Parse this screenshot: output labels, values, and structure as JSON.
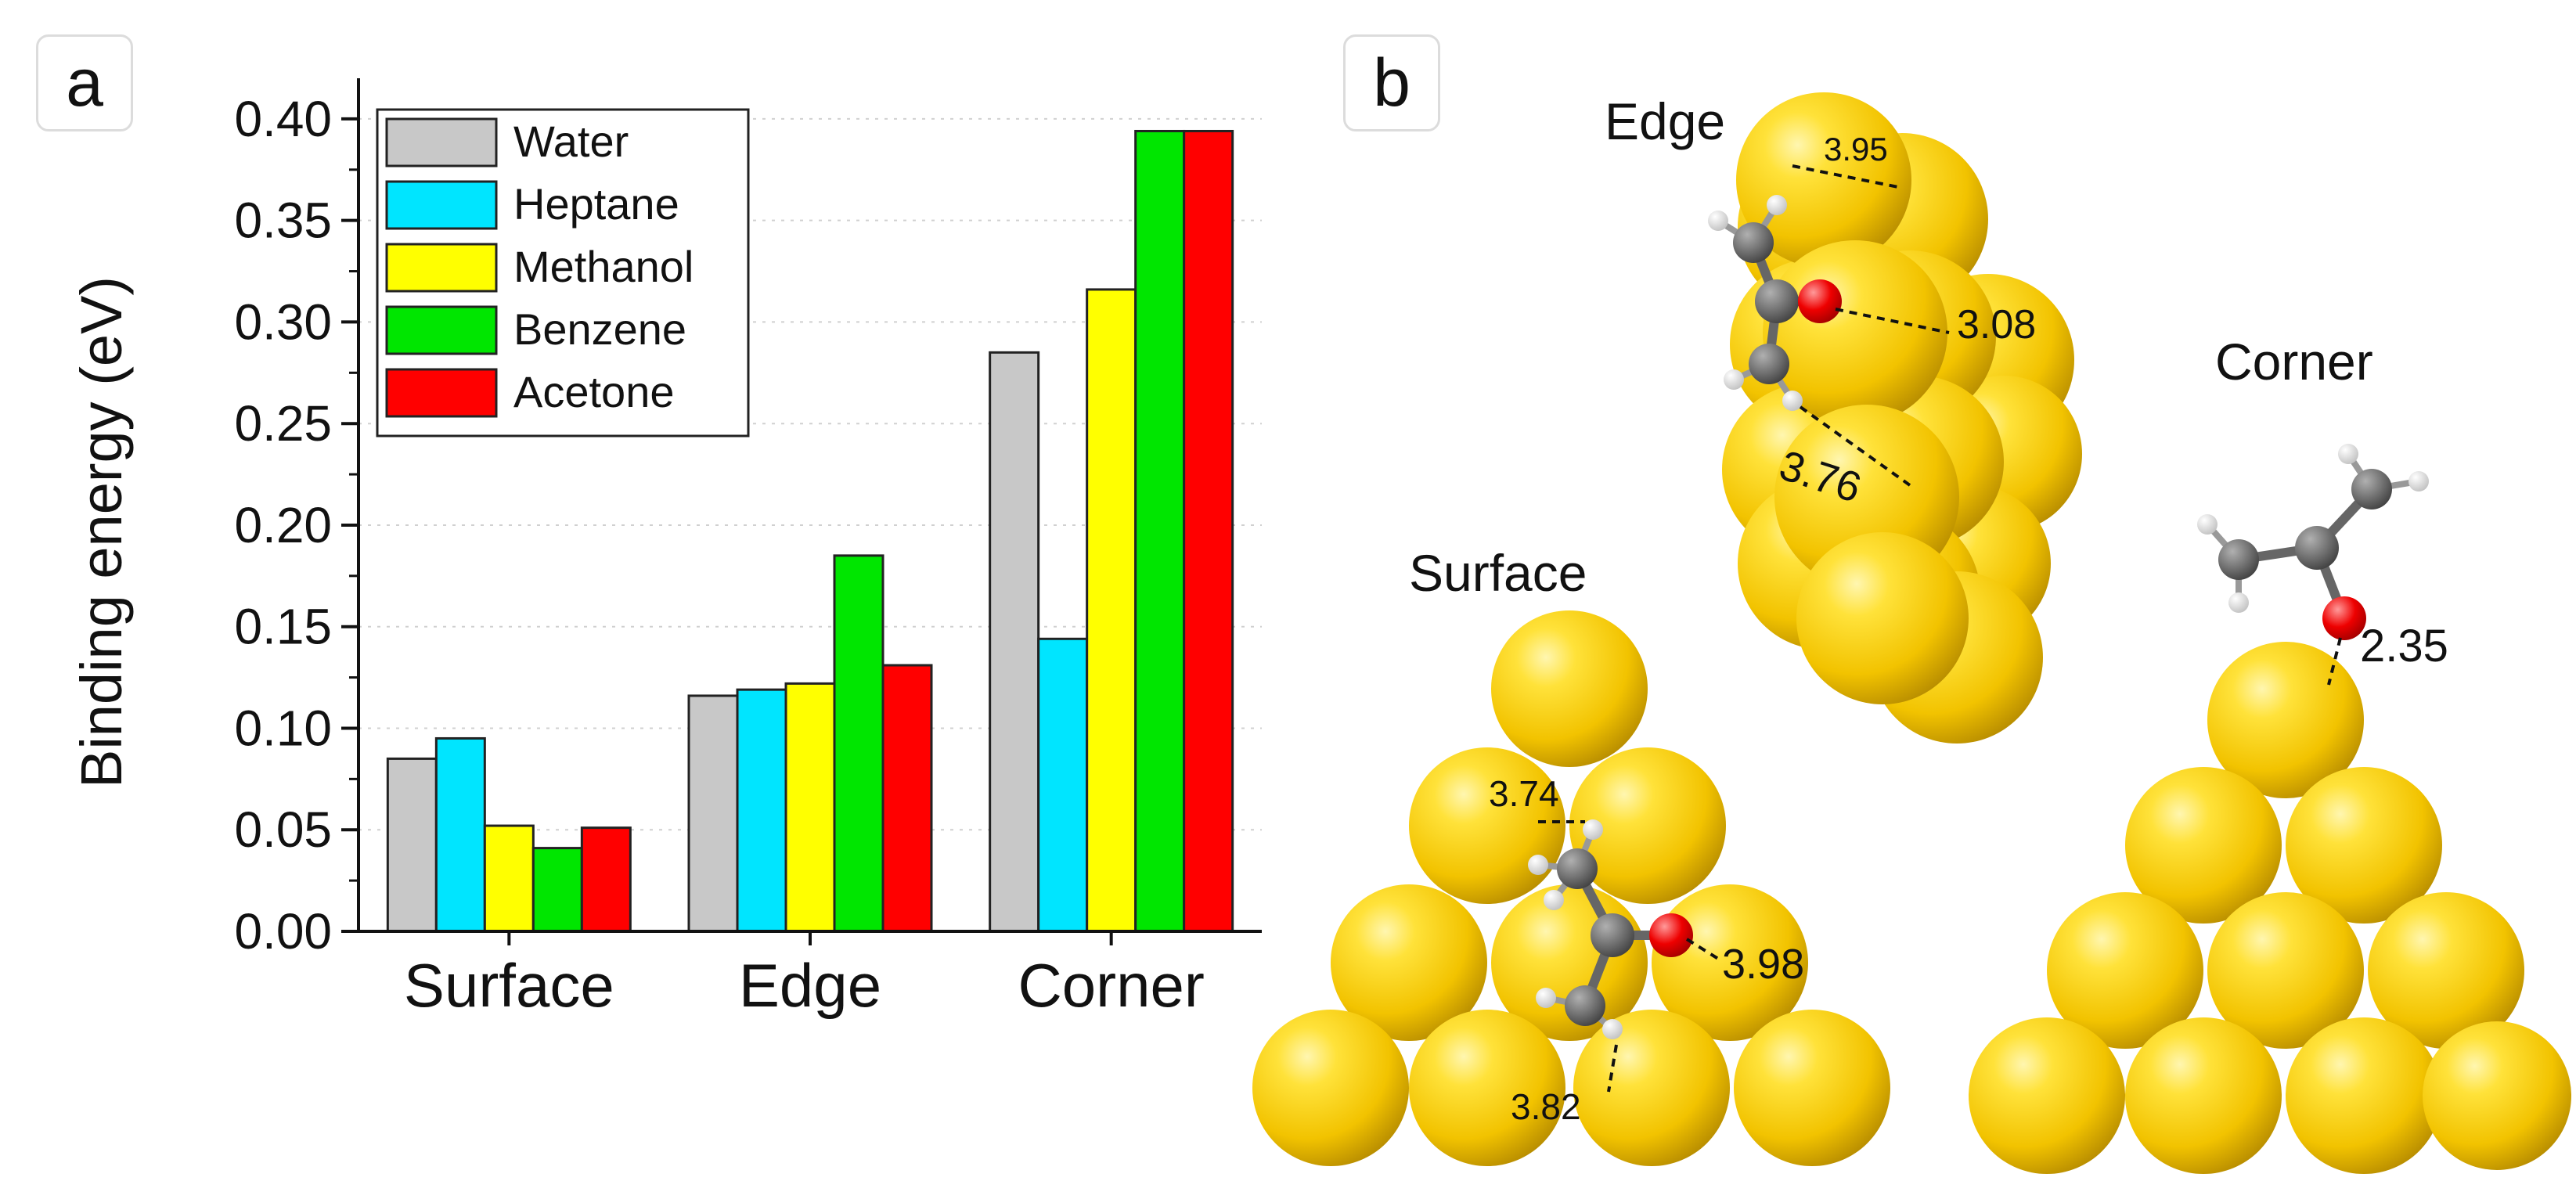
{
  "panels": {
    "a": "a",
    "b": "b"
  },
  "chart_data": {
    "type": "bar",
    "categories": [
      "Surface",
      "Edge",
      "Corner"
    ],
    "series": [
      {
        "name": "Water",
        "color": "#c8c8c8",
        "values": [
          0.085,
          0.116,
          0.285
        ]
      },
      {
        "name": "Heptane",
        "color": "#00e5ff",
        "values": [
          0.095,
          0.119,
          0.144
        ]
      },
      {
        "name": "Methanol",
        "color": "#ffff00",
        "values": [
          0.052,
          0.122,
          0.316
        ]
      },
      {
        "name": "Benzene",
        "color": "#00e600",
        "values": [
          0.041,
          0.185,
          0.394
        ]
      },
      {
        "name": "Acetone",
        "color": "#ff0000",
        "values": [
          0.051,
          0.131,
          0.394
        ]
      }
    ],
    "ylabel": "Binding energy (eV)",
    "xlabel": "",
    "ylim": [
      0,
      0.42
    ],
    "yticks": [
      "0.00",
      "0.05",
      "0.10",
      "0.15",
      "0.20",
      "0.25",
      "0.30",
      "0.35",
      "0.40"
    ],
    "legend_position": "top-left",
    "grid": "horizontal dotted"
  },
  "structures": {
    "edge": {
      "title": "Edge",
      "distances": [
        "3.95",
        "3.08",
        "3.76"
      ]
    },
    "surface": {
      "title": "Surface",
      "distances": [
        "3.74",
        "3.98",
        "3.82"
      ]
    },
    "corner": {
      "title": "Corner",
      "distances": [
        "2.35"
      ]
    }
  },
  "colors": {
    "gold": "#f2c300",
    "carbon": "#555555",
    "oxygen": "#ee0000",
    "hydrogen": "#f2f2f2"
  }
}
